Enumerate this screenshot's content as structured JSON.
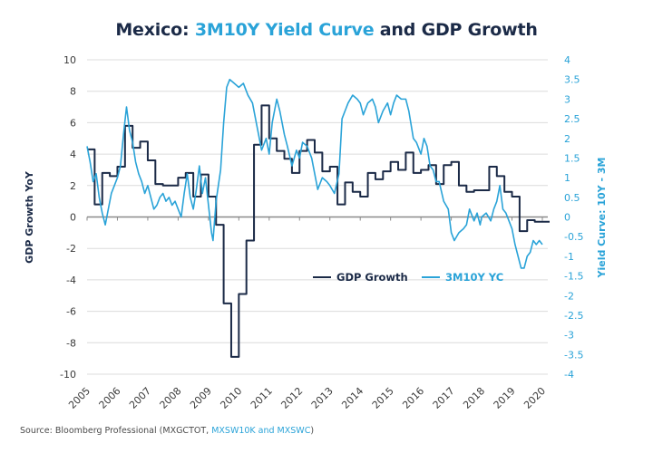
{
  "chart_data": {
    "type": "line",
    "title": {
      "prefix": "Mexico: ",
      "accent": "3M10Y Yield Curve",
      "suffix": " and GDP Growth"
    },
    "xlabel": "",
    "ylabel": "GDP Growth YoY",
    "y2label": "Yield Curve: 10Y - 3M",
    "xlim": [
      2005,
      2020
    ],
    "ylim": [
      -10,
      10
    ],
    "y2lim": [
      -4,
      4
    ],
    "x_ticks": [
      "2005",
      "2006",
      "2007",
      "2008",
      "2009",
      "2010",
      "2011",
      "2012",
      "2013",
      "2014",
      "2015",
      "2016",
      "2017",
      "2018",
      "2019",
      "2020"
    ],
    "y_ticks": [
      "10",
      "8",
      "6",
      "4",
      "2",
      "0",
      "-2",
      "-4",
      "-6",
      "-8",
      "-10"
    ],
    "y2_ticks": [
      "4",
      "3.5",
      "3",
      "2.5",
      "2",
      "1.5",
      "1",
      "0.5",
      "0",
      "-0.5",
      "-1",
      "-1.5",
      "-2",
      "-2.5",
      "-3",
      "-3.5",
      "-4"
    ],
    "grid": true,
    "legend_placement": "center-right",
    "legend": [
      "GDP Growth",
      "3M10Y YC"
    ],
    "colors": {
      "gdp": "#1b2a47",
      "yc": "#2aa3d8",
      "zero_line": "#8a8a8a",
      "grid": "#dcdcdc"
    },
    "series": [
      {
        "name": "GDP Growth",
        "axis": "left",
        "style": "step",
        "points": [
          [
            2005.0,
            4.3
          ],
          [
            2005.25,
            0.8
          ],
          [
            2005.5,
            2.8
          ],
          [
            2005.75,
            2.6
          ],
          [
            2006.0,
            3.2
          ],
          [
            2006.25,
            5.8
          ],
          [
            2006.5,
            4.4
          ],
          [
            2006.75,
            4.8
          ],
          [
            2007.0,
            3.6
          ],
          [
            2007.25,
            2.1
          ],
          [
            2007.5,
            2.0
          ],
          [
            2007.75,
            2.0
          ],
          [
            2008.0,
            2.5
          ],
          [
            2008.25,
            2.8
          ],
          [
            2008.5,
            1.3
          ],
          [
            2008.75,
            2.7
          ],
          [
            2009.0,
            1.3
          ],
          [
            2009.25,
            -0.5
          ],
          [
            2009.5,
            -5.5
          ],
          [
            2009.75,
            -8.9
          ],
          [
            2010.0,
            -4.9
          ],
          [
            2010.25,
            -1.5
          ],
          [
            2010.5,
            4.6
          ],
          [
            2010.75,
            7.1
          ],
          [
            2011.0,
            5.0
          ],
          [
            2011.25,
            4.2
          ],
          [
            2011.5,
            3.7
          ],
          [
            2011.75,
            2.8
          ],
          [
            2012.0,
            4.2
          ],
          [
            2012.25,
            4.9
          ],
          [
            2012.5,
            4.1
          ],
          [
            2012.75,
            2.9
          ],
          [
            2013.0,
            3.2
          ],
          [
            2013.25,
            0.8
          ],
          [
            2013.5,
            2.2
          ],
          [
            2013.75,
            1.6
          ],
          [
            2014.0,
            1.3
          ],
          [
            2014.25,
            2.8
          ],
          [
            2014.5,
            2.4
          ],
          [
            2014.75,
            2.9
          ],
          [
            2015.0,
            3.5
          ],
          [
            2015.25,
            3.0
          ],
          [
            2015.5,
            4.1
          ],
          [
            2015.75,
            2.8
          ],
          [
            2016.0,
            3.0
          ],
          [
            2016.25,
            3.3
          ],
          [
            2016.5,
            2.1
          ],
          [
            2016.75,
            3.3
          ],
          [
            2017.0,
            3.5
          ],
          [
            2017.25,
            2.0
          ],
          [
            2017.5,
            1.6
          ],
          [
            2017.75,
            1.7
          ],
          [
            2018.0,
            1.7
          ],
          [
            2018.25,
            3.2
          ],
          [
            2018.5,
            2.6
          ],
          [
            2018.75,
            1.6
          ],
          [
            2019.0,
            1.3
          ],
          [
            2019.25,
            -0.9
          ],
          [
            2019.5,
            -0.2
          ],
          [
            2019.75,
            -0.3
          ],
          [
            2020.0,
            -0.3
          ]
        ]
      },
      {
        "name": "3M10Y YC",
        "axis": "right",
        "style": "line",
        "points": [
          [
            2005.0,
            1.8
          ],
          [
            2005.1,
            1.4
          ],
          [
            2005.2,
            0.9
          ],
          [
            2005.3,
            1.1
          ],
          [
            2005.4,
            0.5
          ],
          [
            2005.5,
            0.1
          ],
          [
            2005.6,
            -0.2
          ],
          [
            2005.7,
            0.2
          ],
          [
            2005.8,
            0.6
          ],
          [
            2005.9,
            0.8
          ],
          [
            2006.0,
            1.0
          ],
          [
            2006.1,
            1.3
          ],
          [
            2006.2,
            2.1
          ],
          [
            2006.3,
            2.8
          ],
          [
            2006.4,
            2.2
          ],
          [
            2006.5,
            1.9
          ],
          [
            2006.6,
            1.4
          ],
          [
            2006.7,
            1.1
          ],
          [
            2006.8,
            0.9
          ],
          [
            2006.9,
            0.6
          ],
          [
            2007.0,
            0.8
          ],
          [
            2007.1,
            0.5
          ],
          [
            2007.2,
            0.2
          ],
          [
            2007.3,
            0.3
          ],
          [
            2007.4,
            0.5
          ],
          [
            2007.5,
            0.6
          ],
          [
            2007.6,
            0.4
          ],
          [
            2007.7,
            0.5
          ],
          [
            2007.8,
            0.3
          ],
          [
            2007.9,
            0.4
          ],
          [
            2008.0,
            0.2
          ],
          [
            2008.1,
            0.0
          ],
          [
            2008.2,
            0.6
          ],
          [
            2008.3,
            1.1
          ],
          [
            2008.4,
            0.5
          ],
          [
            2008.5,
            0.2
          ],
          [
            2008.6,
            0.7
          ],
          [
            2008.7,
            1.3
          ],
          [
            2008.8,
            0.6
          ],
          [
            2008.9,
            1.0
          ],
          [
            2009.0,
            0.3
          ],
          [
            2009.1,
            -0.4
          ],
          [
            2009.15,
            -0.6
          ],
          [
            2009.25,
            0.4
          ],
          [
            2009.4,
            1.2
          ],
          [
            2009.5,
            2.4
          ],
          [
            2009.6,
            3.3
          ],
          [
            2009.7,
            3.5
          ],
          [
            2009.85,
            3.4
          ],
          [
            2010.0,
            3.3
          ],
          [
            2010.15,
            3.4
          ],
          [
            2010.3,
            3.1
          ],
          [
            2010.45,
            2.9
          ],
          [
            2010.6,
            2.3
          ],
          [
            2010.75,
            1.7
          ],
          [
            2010.9,
            2.0
          ],
          [
            2011.0,
            1.6
          ],
          [
            2011.1,
            2.4
          ],
          [
            2011.25,
            3.0
          ],
          [
            2011.35,
            2.7
          ],
          [
            2011.5,
            2.1
          ],
          [
            2011.6,
            1.8
          ],
          [
            2011.75,
            1.3
          ],
          [
            2011.9,
            1.7
          ],
          [
            2012.0,
            1.5
          ],
          [
            2012.1,
            1.9
          ],
          [
            2012.25,
            1.8
          ],
          [
            2012.4,
            1.5
          ],
          [
            2012.5,
            1.1
          ],
          [
            2012.6,
            0.7
          ],
          [
            2012.75,
            1.0
          ],
          [
            2012.9,
            0.9
          ],
          [
            2013.0,
            0.8
          ],
          [
            2013.15,
            0.6
          ],
          [
            2013.3,
            1.1
          ],
          [
            2013.4,
            2.5
          ],
          [
            2013.5,
            2.7
          ],
          [
            2013.6,
            2.9
          ],
          [
            2013.75,
            3.1
          ],
          [
            2013.9,
            3.0
          ],
          [
            2014.0,
            2.9
          ],
          [
            2014.1,
            2.6
          ],
          [
            2014.25,
            2.9
          ],
          [
            2014.4,
            3.0
          ],
          [
            2014.5,
            2.8
          ],
          [
            2014.6,
            2.4
          ],
          [
            2014.75,
            2.7
          ],
          [
            2014.9,
            2.9
          ],
          [
            2015.0,
            2.6
          ],
          [
            2015.1,
            2.9
          ],
          [
            2015.2,
            3.1
          ],
          [
            2015.35,
            3.0
          ],
          [
            2015.5,
            3.0
          ],
          [
            2015.6,
            2.7
          ],
          [
            2015.75,
            2.0
          ],
          [
            2015.85,
            1.9
          ],
          [
            2016.0,
            1.6
          ],
          [
            2016.1,
            2.0
          ],
          [
            2016.2,
            1.8
          ],
          [
            2016.3,
            1.3
          ],
          [
            2016.4,
            1.2
          ],
          [
            2016.5,
            0.9
          ],
          [
            2016.6,
            0.9
          ],
          [
            2016.75,
            0.4
          ],
          [
            2016.9,
            0.2
          ],
          [
            2017.0,
            -0.4
          ],
          [
            2017.1,
            -0.6
          ],
          [
            2017.25,
            -0.4
          ],
          [
            2017.4,
            -0.3
          ],
          [
            2017.5,
            -0.2
          ],
          [
            2017.6,
            0.2
          ],
          [
            2017.75,
            -0.1
          ],
          [
            2017.85,
            0.1
          ],
          [
            2017.95,
            -0.2
          ],
          [
            2018.0,
            0.0
          ],
          [
            2018.15,
            0.1
          ],
          [
            2018.3,
            -0.1
          ],
          [
            2018.4,
            0.2
          ],
          [
            2018.5,
            0.4
          ],
          [
            2018.6,
            0.8
          ],
          [
            2018.7,
            0.2
          ],
          [
            2018.8,
            0.1
          ],
          [
            2018.9,
            -0.1
          ],
          [
            2019.0,
            -0.3
          ],
          [
            2019.1,
            -0.7
          ],
          [
            2019.2,
            -1.0
          ],
          [
            2019.3,
            -1.3
          ],
          [
            2019.4,
            -1.3
          ],
          [
            2019.5,
            -1.0
          ],
          [
            2019.6,
            -0.9
          ],
          [
            2019.7,
            -0.6
          ],
          [
            2019.8,
            -0.7
          ],
          [
            2019.9,
            -0.6
          ],
          [
            2020.0,
            -0.7
          ]
        ]
      }
    ]
  },
  "footer": {
    "source_prefix": "Source: Bloomberg Professional (MXGCTOT, ",
    "source_accent": "MXSW10K and MXSWC",
    "source_suffix": ")"
  }
}
